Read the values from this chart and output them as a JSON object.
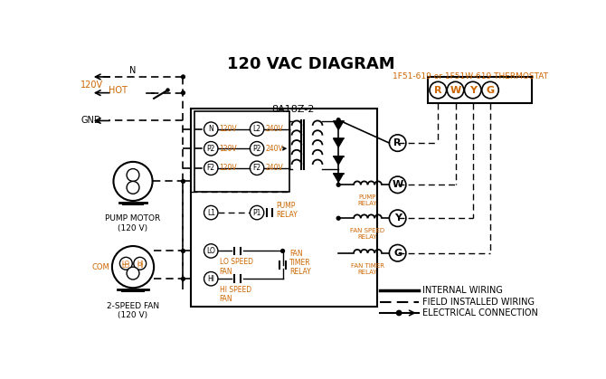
{
  "title": "120 VAC DIAGRAM",
  "background_color": "#ffffff",
  "line_color": "#000000",
  "orange_color": "#cc6600",
  "thermostat_label": "1F51-619 or 1F51W-619 THERMOSTAT",
  "controller_label": "8A18Z-2",
  "pump_motor_label": "PUMP MOTOR\n(120 V)",
  "fan_label": "2-SPEED FAN\n(120 V)",
  "legend_internal": "INTERNAL WIRING",
  "legend_field": "FIELD INSTALLED WIRING",
  "legend_electrical": "ELECTRICAL CONNECTION"
}
